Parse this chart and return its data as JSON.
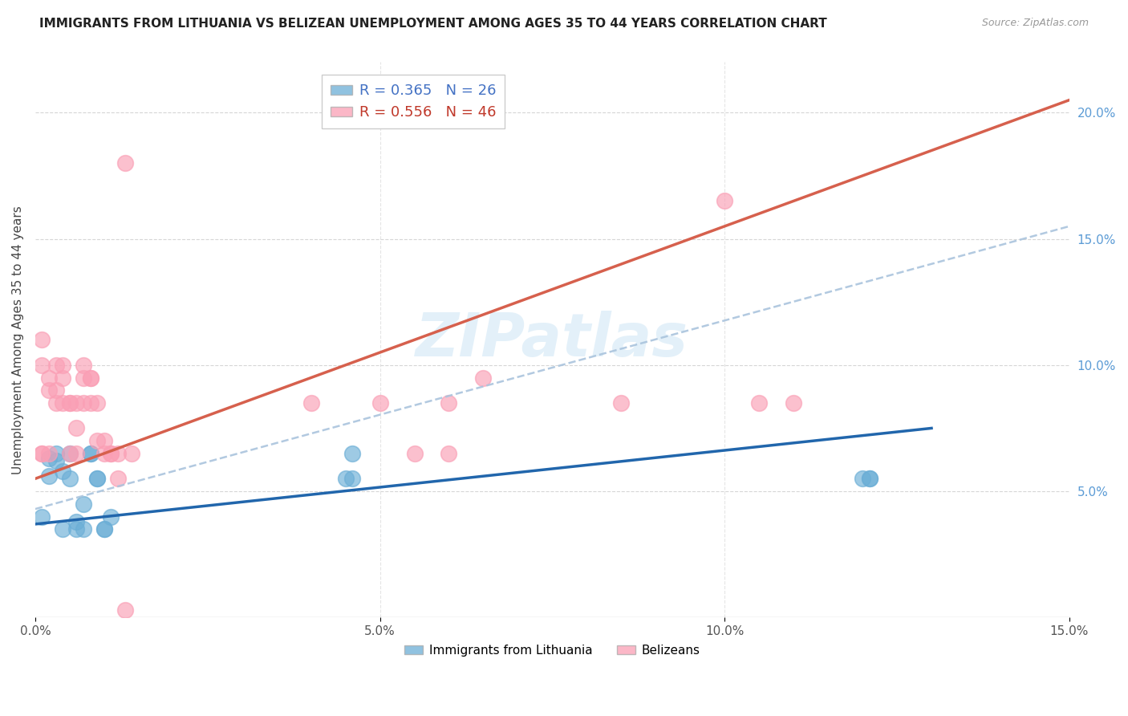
{
  "title": "IMMIGRANTS FROM LITHUANIA VS BELIZEAN UNEMPLOYMENT AMONG AGES 35 TO 44 YEARS CORRELATION CHART",
  "source": "Source: ZipAtlas.com",
  "ylabel": "Unemployment Among Ages 35 to 44 years",
  "xlim": [
    0,
    0.15
  ],
  "ylim": [
    0,
    0.22
  ],
  "xtick_vals": [
    0.0,
    0.05,
    0.1,
    0.15
  ],
  "xtick_labels": [
    "0.0%",
    "5.0%",
    "10.0%",
    "15.0%"
  ],
  "yticks_right": [
    0.05,
    0.1,
    0.15,
    0.2
  ],
  "ytick_labels_right": [
    "5.0%",
    "10.0%",
    "15.0%",
    "20.0%"
  ],
  "legend_r1": "R = 0.365",
  "legend_n1": "N = 26",
  "legend_r2": "R = 0.556",
  "legend_n2": "N = 46",
  "color_blue": "#6baed6",
  "color_pink": "#fa9fb5",
  "color_blue_line": "#2166ac",
  "color_pink_line": "#d6604d",
  "background_color": "#ffffff",
  "grid_color": "#cccccc",
  "watermark": "ZIPatlas",
  "blue_x": [
    0.001,
    0.002,
    0.002,
    0.003,
    0.003,
    0.004,
    0.004,
    0.005,
    0.005,
    0.006,
    0.006,
    0.007,
    0.007,
    0.008,
    0.008,
    0.009,
    0.009,
    0.01,
    0.01,
    0.011,
    0.045,
    0.046,
    0.046,
    0.12,
    0.121,
    0.121
  ],
  "blue_y": [
    0.04,
    0.063,
    0.056,
    0.065,
    0.062,
    0.058,
    0.035,
    0.065,
    0.055,
    0.038,
    0.035,
    0.045,
    0.035,
    0.065,
    0.065,
    0.055,
    0.055,
    0.035,
    0.035,
    0.04,
    0.055,
    0.055,
    0.065,
    0.055,
    0.055,
    0.055
  ],
  "pink_x": [
    0.001,
    0.001,
    0.001,
    0.001,
    0.002,
    0.002,
    0.002,
    0.003,
    0.003,
    0.003,
    0.004,
    0.004,
    0.004,
    0.005,
    0.005,
    0.005,
    0.006,
    0.006,
    0.006,
    0.007,
    0.007,
    0.007,
    0.008,
    0.008,
    0.008,
    0.009,
    0.009,
    0.01,
    0.01,
    0.011,
    0.011,
    0.012,
    0.012,
    0.013,
    0.013,
    0.014,
    0.04,
    0.05,
    0.055,
    0.06,
    0.06,
    0.065,
    0.085,
    0.1,
    0.105,
    0.11
  ],
  "pink_y": [
    0.065,
    0.065,
    0.11,
    0.1,
    0.065,
    0.09,
    0.095,
    0.085,
    0.09,
    0.1,
    0.085,
    0.095,
    0.1,
    0.085,
    0.085,
    0.065,
    0.065,
    0.075,
    0.085,
    0.085,
    0.095,
    0.1,
    0.085,
    0.095,
    0.095,
    0.085,
    0.07,
    0.07,
    0.065,
    0.065,
    0.065,
    0.065,
    0.055,
    0.18,
    0.003,
    0.065,
    0.085,
    0.085,
    0.065,
    0.065,
    0.085,
    0.095,
    0.085,
    0.165,
    0.085,
    0.085
  ],
  "blue_line_x": [
    0.0,
    0.13
  ],
  "blue_line_y": [
    0.037,
    0.075
  ],
  "pink_line_x": [
    0.0,
    0.15
  ],
  "pink_line_y": [
    0.055,
    0.205
  ],
  "dashed_line_x": [
    0.0,
    0.15
  ],
  "dashed_line_y": [
    0.043,
    0.155
  ]
}
